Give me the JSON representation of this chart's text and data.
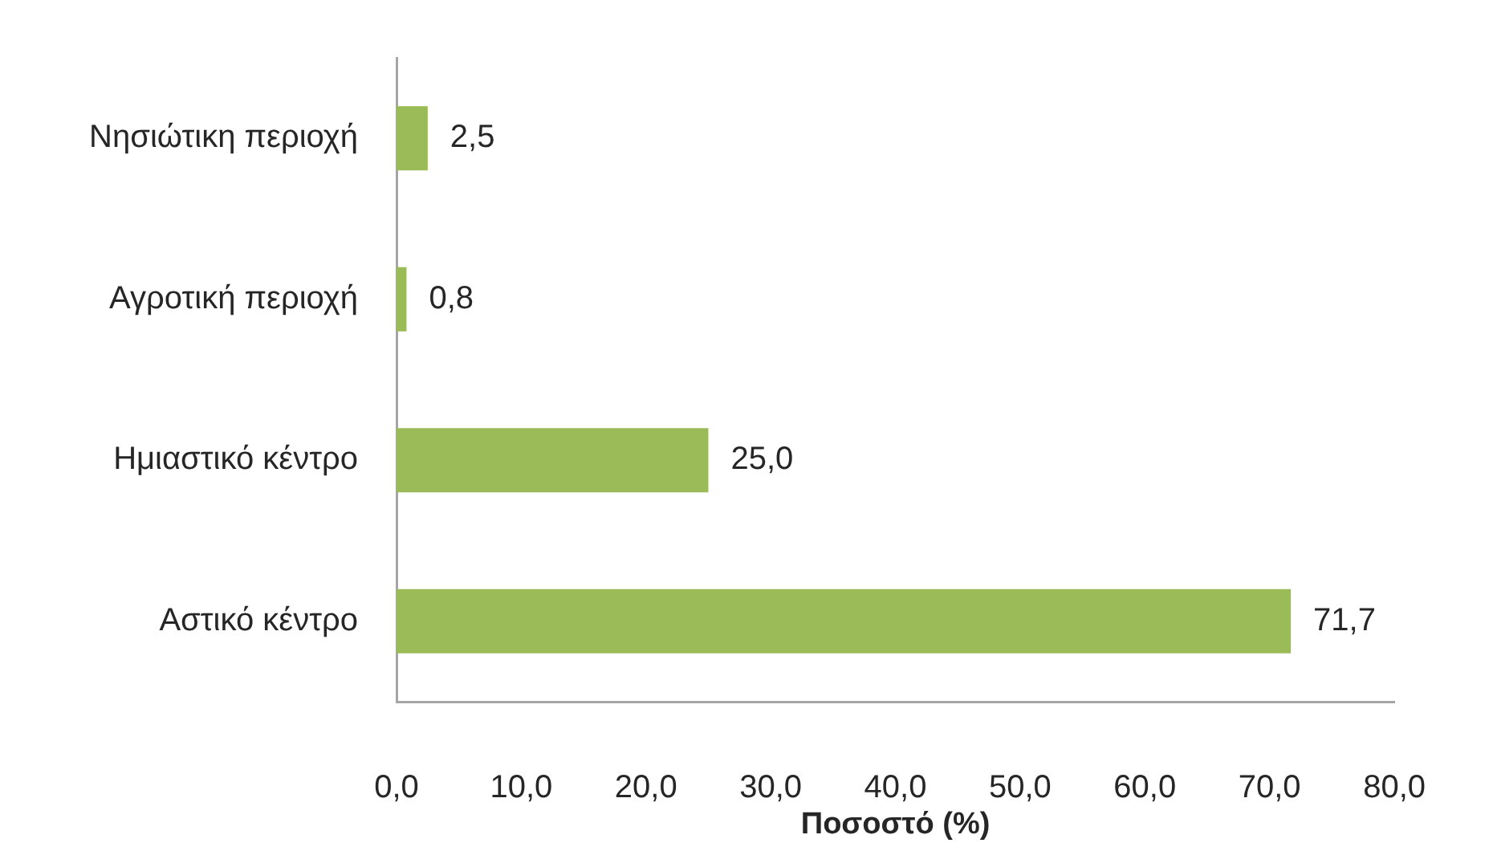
{
  "chart_data": {
    "type": "bar",
    "orientation": "horizontal",
    "categories": [
      "Νησιώτικη περιοχή",
      "Αγροτική περιοχή",
      "Ημιαστικό κέντρο",
      "Αστικό κέντρο"
    ],
    "values": [
      2.5,
      0.8,
      25.0,
      71.7
    ],
    "color": "#9bbb59",
    "value_labels": [
      "2,5",
      "0,8",
      "25,0",
      "71,7"
    ],
    "xlabel": "Ποσοστό (%)",
    "xlim": [
      0,
      80
    ],
    "xticks": [
      {
        "value": 0,
        "label": "0,0"
      },
      {
        "value": 10,
        "label": "10,0"
      },
      {
        "value": 20,
        "label": "20,0"
      },
      {
        "value": 30,
        "label": "30,0"
      },
      {
        "value": 40,
        "label": "40,0"
      },
      {
        "value": 50,
        "label": "50,0"
      },
      {
        "value": 60,
        "label": "60,0"
      },
      {
        "value": 70,
        "label": "70,0"
      },
      {
        "value": 80,
        "label": "80,0"
      }
    ],
    "grid": false,
    "legend": false
  }
}
